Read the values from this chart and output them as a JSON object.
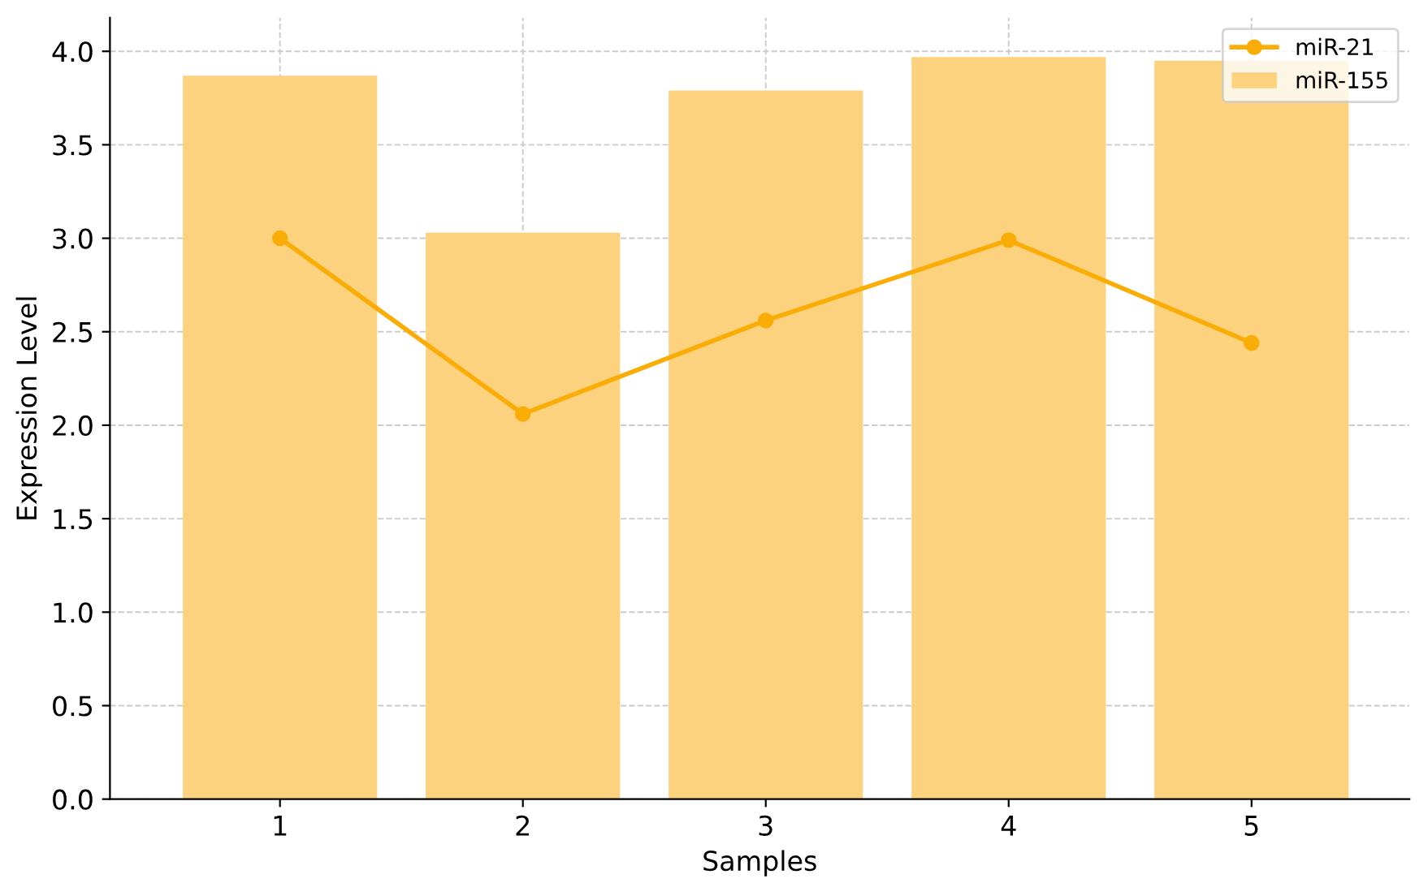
{
  "chart_data": {
    "type": "bar",
    "xlabel": "Samples",
    "ylabel": "Expression Level",
    "categories": [
      "1",
      "2",
      "3",
      "4",
      "5"
    ],
    "series": [
      {
        "name": "miR-21",
        "type": "line",
        "color": "#f9ad06",
        "values": [
          3.0,
          2.06,
          2.56,
          2.99,
          2.44
        ],
        "marker": "circle"
      },
      {
        "name": "miR-155",
        "color": "#fcd27e",
        "values": [
          3.87,
          3.03,
          3.79,
          3.97,
          3.95
        ]
      }
    ],
    "ylim": [
      0,
      4.18
    ],
    "yticks": [
      {
        "value": 0,
        "label": "0.0"
      },
      0.5,
      {
        "value": 1,
        "label": "1.0"
      },
      1.5,
      {
        "value": 2,
        "label": "2.0"
      },
      2.5,
      {
        "value": 3,
        "label": "3.0"
      },
      3.5,
      {
        "value": 4,
        "label": "4.0"
      }
    ],
    "grid": true,
    "legend": "top right"
  }
}
